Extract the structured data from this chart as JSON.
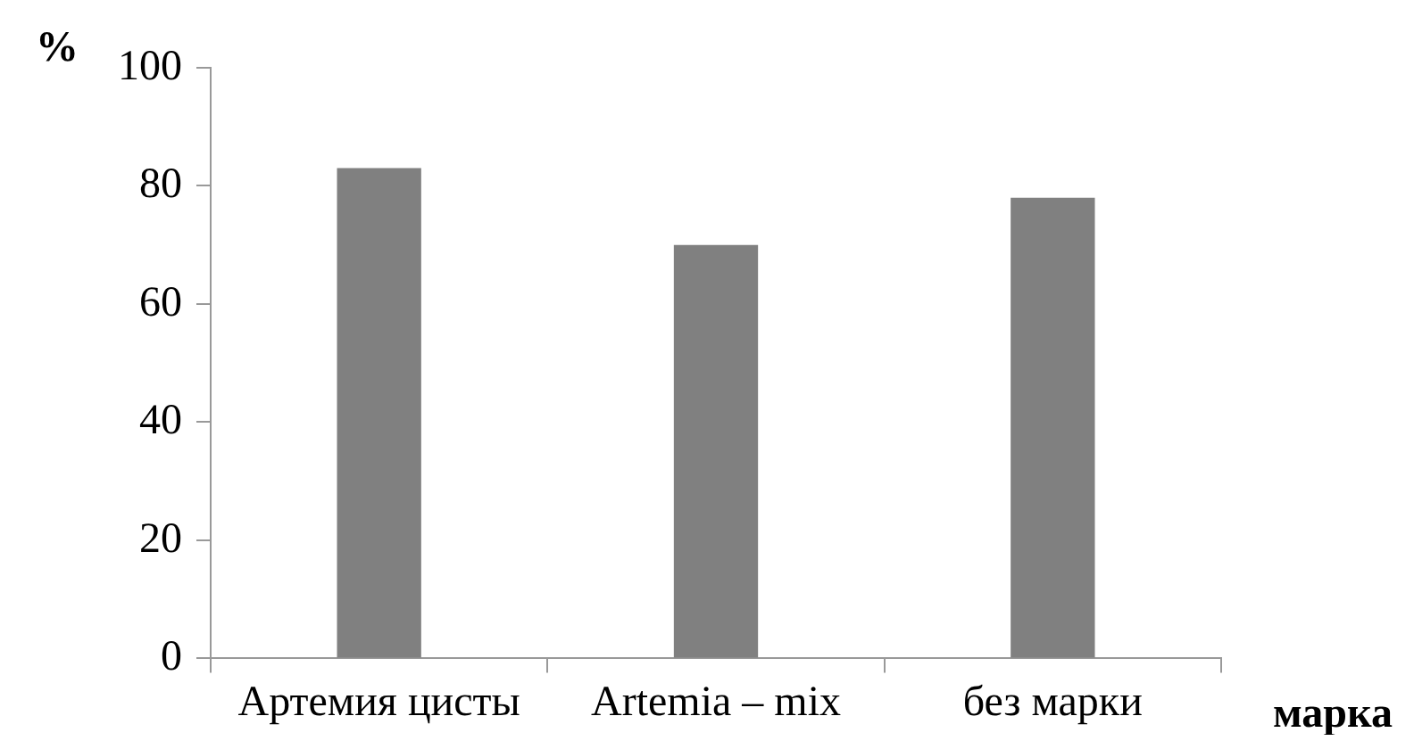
{
  "chart_data": {
    "type": "bar",
    "categories": [
      "Артемия цисты",
      "Artemia – mix",
      "без марки"
    ],
    "values": [
      83,
      70,
      78
    ],
    "color": "#808080",
    "ylabel": "%",
    "xlabel": "марка",
    "ylim": [
      0,
      100
    ],
    "yticks": [
      0,
      20,
      40,
      60,
      80,
      100
    ],
    "grid": false,
    "legend": false
  }
}
